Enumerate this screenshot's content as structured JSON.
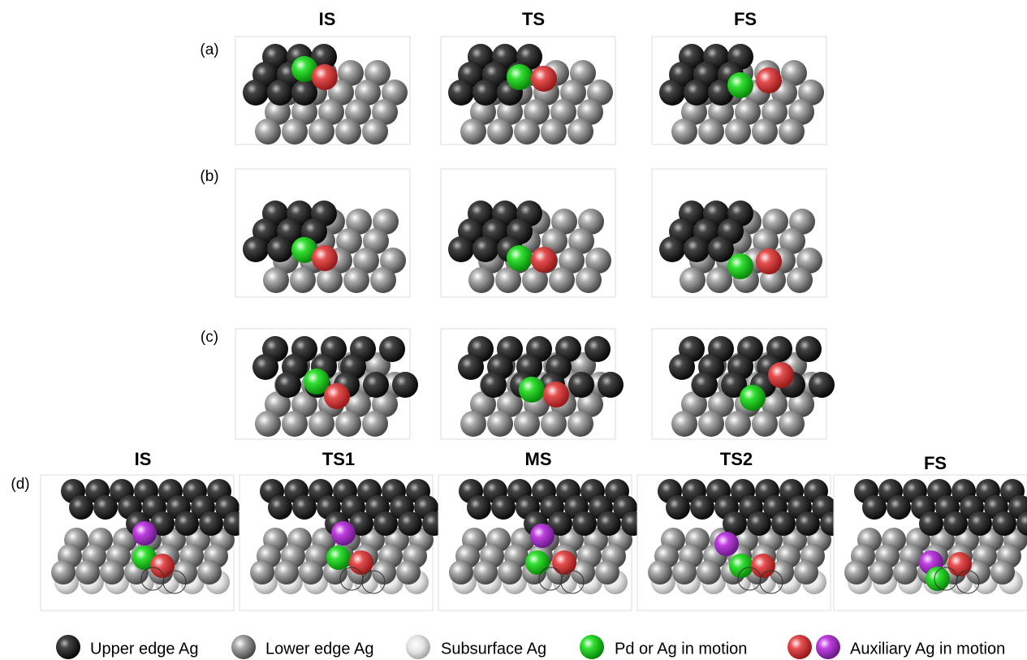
{
  "top_columns": [
    "IS",
    "TS",
    "FS"
  ],
  "rows": [
    "(a)",
    "(b)",
    "(c)",
    "(d)"
  ],
  "bottom_columns": [
    "IS",
    "TS1",
    "MS",
    "TS2",
    "FS"
  ],
  "legend": [
    "Upper edge Ag",
    "Lower edge Ag",
    "Subsurface Ag",
    "Pd or Ag in motion",
    "Auxiliary Ag in motion"
  ]
}
